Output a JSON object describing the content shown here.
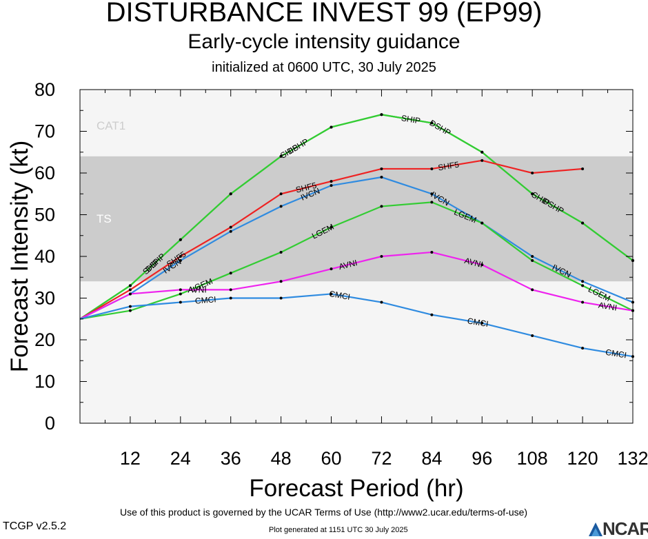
{
  "header": {
    "title": "DISTURBANCE INVEST 99 (EP99)",
    "subtitle": "Early-cycle intensity guidance",
    "initialized": "initialized at 0600 UTC, 30 July 2025"
  },
  "footer": {
    "terms": "Use of this product is governed by the UCAR Terms of Use (http://www2.ucar.edu/terms-of-use)",
    "version": "TCGP v2.5.2",
    "generated": "Plot generated at 1151 UTC   30 July 2025",
    "logo_text": "NCAR"
  },
  "chart_data": {
    "type": "line",
    "xlabel": "Forecast Period (hr)",
    "ylabel": "Forecast Intensity (kt)",
    "xlim": [
      0,
      132
    ],
    "ylim": [
      0,
      80
    ],
    "x_ticks": [
      12,
      24,
      36,
      48,
      60,
      72,
      84,
      96,
      108,
      120,
      132
    ],
    "y_ticks": [
      0,
      10,
      20,
      30,
      40,
      50,
      60,
      70,
      80
    ],
    "bands": [
      {
        "label": "CAT1",
        "y0": 64,
        "y1": 80,
        "color": "#f5f5f5"
      },
      {
        "label": "TS",
        "y0": 34,
        "y1": 64,
        "color": "#cccccc"
      },
      {
        "label": "",
        "y0": 0,
        "y1": 34,
        "color": "#f5f5f5"
      }
    ],
    "series": [
      {
        "name": "DSHP",
        "color": "#33cc33",
        "x": [
          0,
          12,
          24,
          36,
          48,
          60,
          72,
          84,
          96,
          108,
          120,
          132
        ],
        "y": [
          25,
          33,
          44,
          55,
          64,
          71,
          74,
          72,
          65,
          55,
          48,
          39
        ],
        "labels": [
          {
            "text": "DSHP",
            "x": 18
          },
          {
            "text": "DSHP",
            "x": 52
          },
          {
            "text": "DSHP",
            "x": 86
          },
          {
            "text": "DSHP",
            "x": 113
          }
        ]
      },
      {
        "name": "SHIP",
        "color": "#33cc33",
        "x": [
          0,
          12,
          24,
          36,
          48,
          60,
          72,
          84,
          96,
          108,
          120,
          132
        ],
        "y": [
          25,
          33,
          44,
          55,
          64,
          71,
          74,
          72,
          65,
          55,
          48,
          39
        ],
        "labels": [
          {
            "text": "SHIP",
            "x": 17
          },
          {
            "text": "SHIP",
            "x": 50
          },
          {
            "text": "SHIP",
            "x": 79
          },
          {
            "text": "SHIP",
            "x": 110
          }
        ]
      },
      {
        "name": "SHF5",
        "color": "#ee2222",
        "x": [
          0,
          12,
          24,
          36,
          48,
          60,
          72,
          84,
          96,
          108,
          120
        ],
        "y": [
          25,
          32,
          40,
          47,
          55,
          58,
          61,
          61,
          63,
          60,
          61
        ],
        "labels": [
          {
            "text": "SHF5",
            "x": 23
          },
          {
            "text": "SHF5",
            "x": 54
          },
          {
            "text": "SHF5",
            "x": 88
          }
        ]
      },
      {
        "name": "IVCN",
        "color": "#2f8be0",
        "x": [
          0,
          12,
          24,
          36,
          48,
          60,
          72,
          84,
          96,
          108,
          120,
          132
        ],
        "y": [
          25,
          31,
          39,
          46,
          52,
          57,
          59,
          55,
          48,
          40,
          34,
          29
        ],
        "labels": [
          {
            "text": "IVCN",
            "x": 22
          },
          {
            "text": "IVCN",
            "x": 55
          },
          {
            "text": "IVCN",
            "x": 86
          },
          {
            "text": "IVCN",
            "x": 115
          }
        ]
      },
      {
        "name": "LGEM",
        "color": "#33cc33",
        "x": [
          0,
          12,
          24,
          36,
          48,
          60,
          72,
          84,
          96,
          108,
          120,
          132
        ],
        "y": [
          25,
          27,
          31,
          36,
          41,
          47,
          52,
          53,
          48,
          39,
          33,
          27
        ],
        "labels": [
          {
            "text": "LGEM",
            "x": 29
          },
          {
            "text": "LGEM",
            "x": 58
          },
          {
            "text": "LGEM",
            "x": 92
          },
          {
            "text": "LGEM",
            "x": 124
          }
        ]
      },
      {
        "name": "AVNI",
        "color": "#ee22ee",
        "x": [
          0,
          12,
          24,
          36,
          48,
          60,
          72,
          84,
          96,
          108,
          120,
          132
        ],
        "y": [
          25,
          31,
          32,
          32,
          34,
          37,
          40,
          41,
          38,
          32,
          29,
          27
        ],
        "labels": [
          {
            "text": "AVNI",
            "x": 28
          },
          {
            "text": "AVNI",
            "x": 64
          },
          {
            "text": "AVNI",
            "x": 94
          },
          {
            "text": "AVNI",
            "x": 126
          }
        ]
      },
      {
        "name": "CMCI",
        "color": "#2f8be0",
        "x": [
          0,
          12,
          24,
          36,
          48,
          60,
          72,
          84,
          96,
          108,
          120,
          132
        ],
        "y": [
          25,
          28,
          29,
          30,
          30,
          31,
          29,
          26,
          24,
          21,
          18,
          16
        ],
        "labels": [
          {
            "text": "CMCI",
            "x": 30
          },
          {
            "text": "CMCI",
            "x": 62
          },
          {
            "text": "CMCI",
            "x": 95
          },
          {
            "text": "CMCI",
            "x": 128
          }
        ]
      }
    ]
  }
}
